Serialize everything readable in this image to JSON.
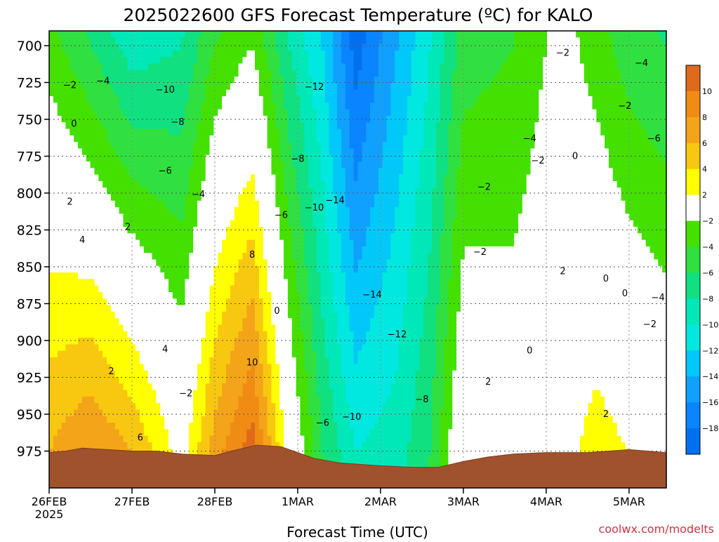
{
  "title": "2025022600 GFS Forecast Temperature (ºC) for KALO",
  "xlabel": "Forecast Time (UTC)",
  "credit": "coolwx.com/modelts",
  "chart_data": {
    "type": "heatmap",
    "title": "2025022600 GFS Forecast Temperature (ºC) for KALO",
    "xlabel": "Forecast Time (UTC)",
    "ylabel": "",
    "x_ticks": [
      {
        "label": "26FEB",
        "sub": "2025",
        "day": 0
      },
      {
        "label": "27FEB",
        "sub": "",
        "day": 1
      },
      {
        "label": "28FEB",
        "sub": "",
        "day": 2
      },
      {
        "label": "1MAR",
        "sub": "",
        "day": 3
      },
      {
        "label": "2MAR",
        "sub": "",
        "day": 4
      },
      {
        "label": "3MAR",
        "sub": "",
        "day": 5
      },
      {
        "label": "4MAR",
        "sub": "",
        "day": 6
      },
      {
        "label": "5MAR",
        "sub": "",
        "day": 7
      }
    ],
    "xlim": [
      0,
      7.45
    ],
    "y_ticks": [
      700,
      725,
      750,
      775,
      800,
      825,
      850,
      875,
      900,
      925,
      950,
      975
    ],
    "ylim": [
      690,
      1000
    ],
    "y_inverted": true,
    "grid": true,
    "colorbar": {
      "labels": [
        "10",
        "8",
        "6",
        "4",
        "2",
        "−2",
        "−4",
        "−6",
        "−8",
        "−10",
        "−12",
        "−14",
        "−16",
        "−18"
      ],
      "bands": [
        {
          "lo": 10,
          "hi": 12,
          "color": "#e06a1c"
        },
        {
          "lo": 8,
          "hi": 10,
          "color": "#f08c14"
        },
        {
          "lo": 6,
          "hi": 8,
          "color": "#f4a418"
        },
        {
          "lo": 4,
          "hi": 6,
          "color": "#f8c810"
        },
        {
          "lo": 2,
          "hi": 4,
          "color": "#ffff00"
        },
        {
          "lo": -2,
          "hi": 2,
          "color": "#ffffff"
        },
        {
          "lo": -4,
          "hi": -2,
          "color": "#44e000"
        },
        {
          "lo": -6,
          "hi": -4,
          "color": "#30e040"
        },
        {
          "lo": -8,
          "hi": -6,
          "color": "#10e080"
        },
        {
          "lo": -10,
          "hi": -8,
          "color": "#00e8b8"
        },
        {
          "lo": -12,
          "hi": -10,
          "color": "#00e8e0"
        },
        {
          "lo": -14,
          "hi": -12,
          "color": "#00c8f8"
        },
        {
          "lo": -16,
          "hi": -14,
          "color": "#10a0ff"
        },
        {
          "lo": -18,
          "hi": -16,
          "color": "#0a84ff"
        },
        {
          "lo": -20,
          "hi": -18,
          "color": "#0070f0"
        }
      ]
    },
    "temperature_keyframes": [
      {
        "day": 0.0,
        "t700": -3,
        "t975": 6
      },
      {
        "day": 0.5,
        "t700": -6,
        "t975": 8
      },
      {
        "day": 1.0,
        "t700": -9,
        "t975": 6
      },
      {
        "day": 1.6,
        "t700": -8,
        "t975": 1
      },
      {
        "day": 2.0,
        "t700": -4,
        "t975": 7
      },
      {
        "day": 2.45,
        "t700": -2,
        "t975": 11
      },
      {
        "day": 2.9,
        "t700": -8,
        "t975": 1
      },
      {
        "day": 3.3,
        "t700": -12,
        "t975": -6
      },
      {
        "day": 3.7,
        "t700": -19,
        "t975": -10
      },
      {
        "day": 4.2,
        "t700": -14,
        "t975": -9
      },
      {
        "day": 4.6,
        "t700": -10,
        "t975": -6
      },
      {
        "day": 5.0,
        "t700": -5,
        "t975": 1
      },
      {
        "day": 5.6,
        "t700": -4,
        "t975": 0
      },
      {
        "day": 6.2,
        "t700": -1,
        "t975": 1
      },
      {
        "day": 6.6,
        "t700": -3,
        "t975": 3
      },
      {
        "day": 7.0,
        "t700": -5,
        "t975": 2
      },
      {
        "day": 7.45,
        "t700": -6,
        "t975": 1
      }
    ],
    "surface_pressure": [
      {
        "day": 0.0,
        "p": 976
      },
      {
        "day": 0.2,
        "p": 975
      },
      {
        "day": 0.4,
        "p": 973
      },
      {
        "day": 0.7,
        "p": 974
      },
      {
        "day": 1.0,
        "p": 975
      },
      {
        "day": 1.3,
        "p": 975
      },
      {
        "day": 1.6,
        "p": 977
      },
      {
        "day": 2.0,
        "p": 978
      },
      {
        "day": 2.2,
        "p": 975
      },
      {
        "day": 2.5,
        "p": 971
      },
      {
        "day": 2.8,
        "p": 972
      },
      {
        "day": 3.0,
        "p": 976
      },
      {
        "day": 3.2,
        "p": 980
      },
      {
        "day": 3.5,
        "p": 983
      },
      {
        "day": 4.0,
        "p": 985
      },
      {
        "day": 4.4,
        "p": 986
      },
      {
        "day": 4.7,
        "p": 986
      },
      {
        "day": 5.0,
        "p": 982
      },
      {
        "day": 5.3,
        "p": 979
      },
      {
        "day": 5.6,
        "p": 977
      },
      {
        "day": 6.0,
        "p": 976
      },
      {
        "day": 6.5,
        "p": 976
      },
      {
        "day": 7.0,
        "p": 974
      },
      {
        "day": 7.45,
        "p": 976
      }
    ],
    "contour_labels": [
      {
        "text": "−2",
        "day": 0.25,
        "p": 727
      },
      {
        "text": "−4",
        "day": 0.65,
        "p": 724
      },
      {
        "text": "−10",
        "day": 1.4,
        "p": 730
      },
      {
        "text": "−8",
        "day": 1.55,
        "p": 752
      },
      {
        "text": "−6",
        "day": 1.4,
        "p": 785
      },
      {
        "text": "−4",
        "day": 1.8,
        "p": 801
      },
      {
        "text": "0",
        "day": 0.3,
        "p": 753
      },
      {
        "text": "2",
        "day": 0.25,
        "p": 806
      },
      {
        "text": "4",
        "day": 0.4,
        "p": 832
      },
      {
        "text": "2",
        "day": 0.95,
        "p": 823
      },
      {
        "text": "2",
        "day": 0.75,
        "p": 921
      },
      {
        "text": "4",
        "day": 1.4,
        "p": 906
      },
      {
        "text": "6",
        "day": 1.1,
        "p": 966
      },
      {
        "text": "−2",
        "day": 1.65,
        "p": 936
      },
      {
        "text": "8",
        "day": 2.45,
        "p": 842
      },
      {
        "text": "10",
        "day": 2.45,
        "p": 915
      },
      {
        "text": "0",
        "day": 2.75,
        "p": 880
      },
      {
        "text": "−6",
        "day": 2.8,
        "p": 815
      },
      {
        "text": "−8",
        "day": 3.0,
        "p": 777
      },
      {
        "text": "−12",
        "day": 3.2,
        "p": 728
      },
      {
        "text": "−10",
        "day": 3.2,
        "p": 810
      },
      {
        "text": "−14",
        "day": 3.45,
        "p": 805
      },
      {
        "text": "−14",
        "day": 3.9,
        "p": 869
      },
      {
        "text": "−12",
        "day": 4.2,
        "p": 896
      },
      {
        "text": "−8",
        "day": 4.5,
        "p": 940
      },
      {
        "text": "−6",
        "day": 3.3,
        "p": 956
      },
      {
        "text": "−10",
        "day": 3.65,
        "p": 952
      },
      {
        "text": "−2",
        "day": 5.2,
        "p": 840
      },
      {
        "text": "−2",
        "day": 5.25,
        "p": 796
      },
      {
        "text": "2",
        "day": 5.3,
        "p": 928
      },
      {
        "text": "−4",
        "day": 5.8,
        "p": 763
      },
      {
        "text": "−2",
        "day": 6.2,
        "p": 705
      },
      {
        "text": "−2",
        "day": 5.9,
        "p": 778
      },
      {
        "text": "0",
        "day": 6.35,
        "p": 775
      },
      {
        "text": "0",
        "day": 5.8,
        "p": 907
      },
      {
        "text": "2",
        "day": 6.2,
        "p": 853
      },
      {
        "text": "0",
        "day": 6.72,
        "p": 858
      },
      {
        "text": "0",
        "day": 6.95,
        "p": 868
      },
      {
        "text": "2",
        "day": 6.72,
        "p": 950
      },
      {
        "text": "−4",
        "day": 7.15,
        "p": 712
      },
      {
        "text": "−2",
        "day": 6.95,
        "p": 741
      },
      {
        "text": "−6",
        "day": 7.3,
        "p": 763
      },
      {
        "text": "−4",
        "day": 7.35,
        "p": 871
      },
      {
        "text": "−2",
        "day": 7.25,
        "p": 889
      }
    ]
  }
}
